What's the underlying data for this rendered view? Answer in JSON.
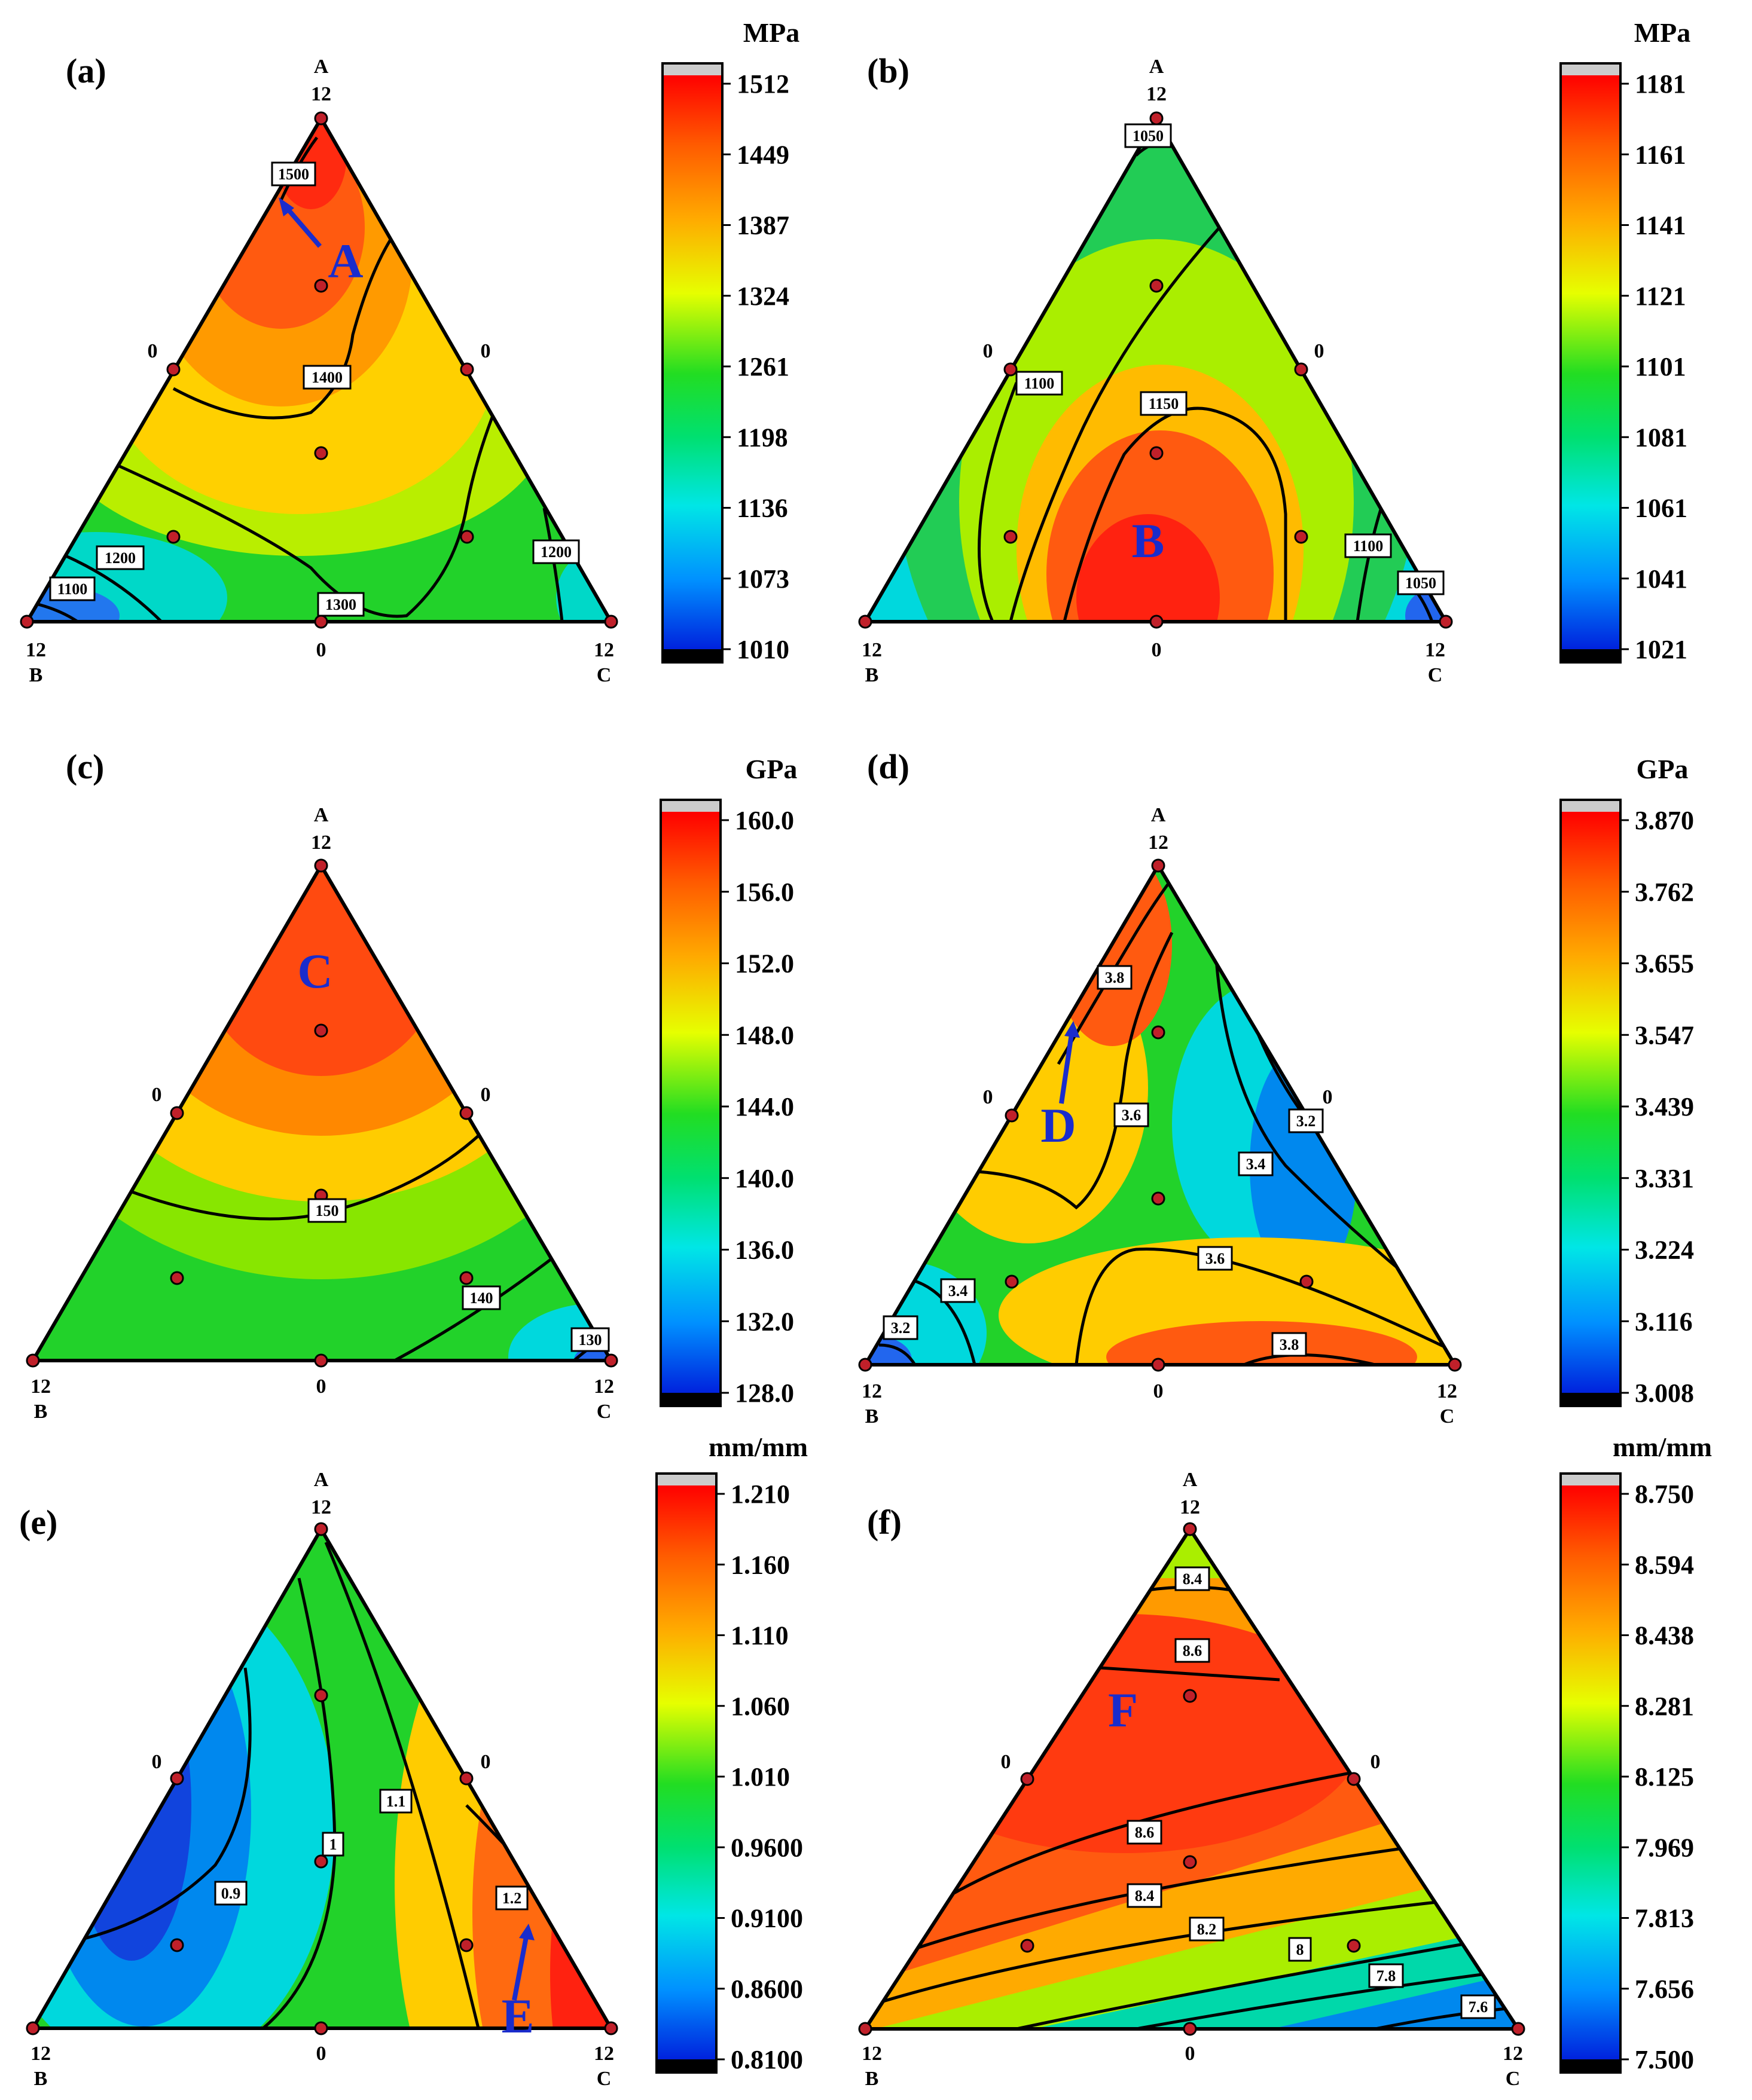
{
  "figure": {
    "vertex_label_A": "A",
    "vertex_label_B": "B",
    "vertex_label_C": "C",
    "vertex_max": "12",
    "vertex_zero": "0"
  },
  "chart_data": [
    {
      "type": "ternary-contour",
      "panel": "(a)",
      "unit": "MPa",
      "colorbar_ticks": [
        "1512",
        "1449",
        "1387",
        "1324",
        "1261",
        "1198",
        "1136",
        "1073",
        "1010"
      ],
      "colorbar_range": [
        1010,
        1512
      ],
      "contour_labels": [
        "1500",
        "1400",
        "1300",
        "1200",
        "1200",
        "1100"
      ],
      "annotation": "A"
    },
    {
      "type": "ternary-contour",
      "panel": "(b)",
      "unit": "MPa",
      "colorbar_ticks": [
        "1181",
        "1161",
        "1141",
        "1121",
        "1101",
        "1081",
        "1061",
        "1041",
        "1021"
      ],
      "colorbar_range": [
        1021,
        1181
      ],
      "contour_labels": [
        "1050",
        "1100",
        "1150",
        "1100",
        "1050"
      ],
      "annotation": "B"
    },
    {
      "type": "ternary-contour",
      "panel": "(c)",
      "unit": "GPa",
      "colorbar_ticks": [
        "160.0",
        "156.0",
        "152.0",
        "148.0",
        "144.0",
        "140.0",
        "136.0",
        "132.0",
        "128.0"
      ],
      "colorbar_range": [
        128.0,
        160.0
      ],
      "contour_labels": [
        "150",
        "140",
        "130"
      ],
      "annotation": "C"
    },
    {
      "type": "ternary-contour",
      "panel": "(d)",
      "unit": "GPa",
      "colorbar_ticks": [
        "3.870",
        "3.762",
        "3.655",
        "3.547",
        "3.439",
        "3.331",
        "3.224",
        "3.116",
        "3.008"
      ],
      "colorbar_range": [
        3.008,
        3.87
      ],
      "contour_labels": [
        "3.8",
        "3.6",
        "3.2",
        "3.4",
        "3.6",
        "3.4",
        "3.2",
        "3.8"
      ],
      "annotation": "D"
    },
    {
      "type": "ternary-contour",
      "panel": "(e)",
      "unit": "mm/mm",
      "colorbar_ticks": [
        "1.210",
        "1.160",
        "1.110",
        "1.060",
        "1.010",
        "0.9600",
        "0.9100",
        "0.8600",
        "0.8100"
      ],
      "colorbar_range": [
        0.81,
        1.21
      ],
      "contour_labels": [
        "1.1",
        "1",
        "0.9",
        "1.2"
      ],
      "annotation": "E"
    },
    {
      "type": "ternary-contour",
      "panel": "(f)",
      "unit": "mm/mm",
      "colorbar_ticks": [
        "8.750",
        "8.594",
        "8.438",
        "8.281",
        "8.125",
        "7.969",
        "7.813",
        "7.656",
        "7.500"
      ],
      "colorbar_range": [
        7.5,
        8.75
      ],
      "contour_labels": [
        "8.4",
        "8.6",
        "8.6",
        "8.4",
        "8.2",
        "8",
        "7.8",
        "7.6"
      ],
      "annotation": "F"
    }
  ]
}
